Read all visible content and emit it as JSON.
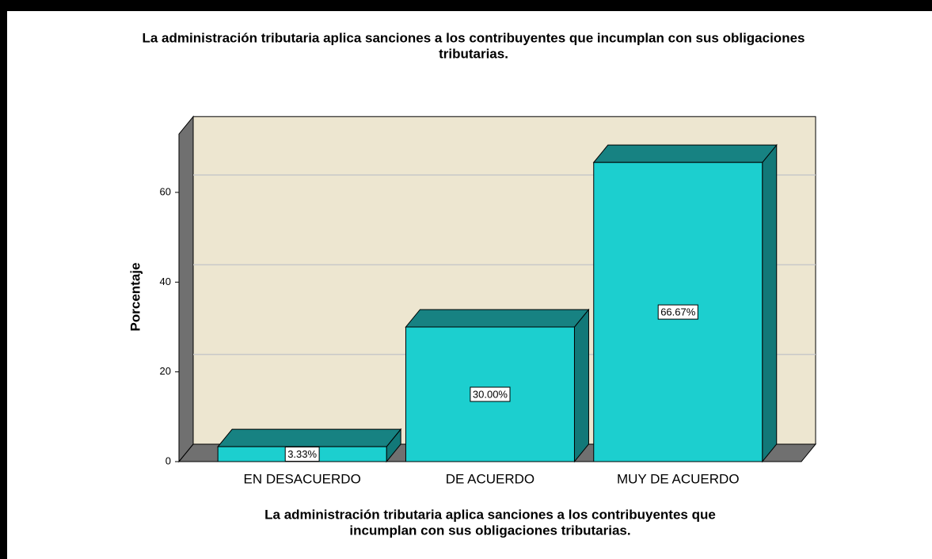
{
  "chart_data": {
    "type": "bar3d",
    "title": [
      "La administración tributaria aplica sanciones a los contribuyentes que incumplan con sus obligaciones",
      "tributarias."
    ],
    "x_label": [
      "La administración tributaria aplica sanciones a los contribuyentes que",
      "incumplan con sus obligaciones tributarias."
    ],
    "y_label": "Porcentaje",
    "categories": [
      "EN DESACUERDO",
      "DE ACUERDO",
      "MUY DE ACUERDO"
    ],
    "values": [
      3.33,
      30.0,
      66.67
    ],
    "value_labels": [
      "3.33%",
      "30.00%",
      "66.67%"
    ],
    "color": "#1ccfcf",
    "ylim": [
      0,
      73
    ],
    "yticks": [
      0,
      20,
      40,
      60
    ],
    "grid": true
  }
}
